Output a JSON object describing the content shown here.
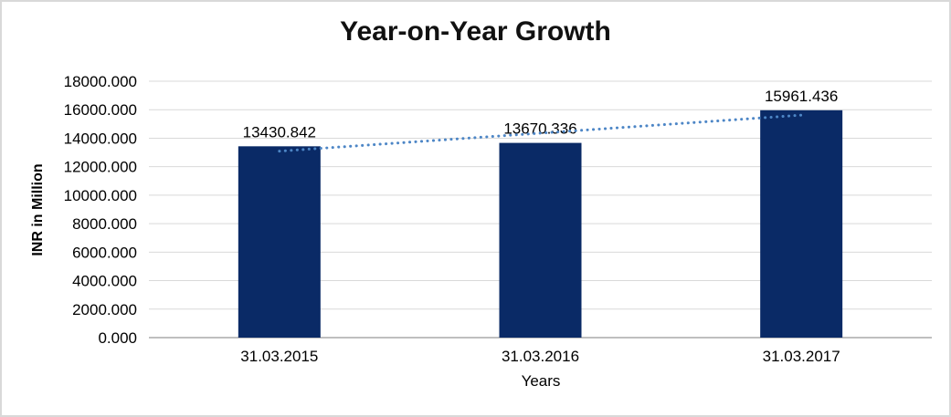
{
  "window": {
    "background": "#ffffff",
    "border_color": "#d9d9d9"
  },
  "chart_data": {
    "type": "bar",
    "title": "Year-on-Year Growth",
    "xlabel": "Years",
    "ylabel": "INR in Million",
    "categories": [
      "31.03.2015",
      "31.03.2016",
      "31.03.2017"
    ],
    "values": [
      13430.842,
      13670.336,
      15961.436
    ],
    "data_labels": [
      "13430.842",
      "13670.336",
      "15961.436"
    ],
    "ylim": [
      0,
      18000
    ],
    "y_tick_step": 2000,
    "y_tick_labels": [
      "0.000",
      "2000.000",
      "4000.000",
      "6000.000",
      "8000.000",
      "10000.000",
      "12000.000",
      "14000.000",
      "16000.000",
      "18000.000"
    ],
    "grid": true,
    "legend": false,
    "trendline": {
      "type": "linear",
      "style": "dotted"
    },
    "colors": {
      "bar": "#0a2a66",
      "trendline": "#4d86c6",
      "gridline": "#d9d9d9",
      "axis_line": "#bfbfbf",
      "label_text": "#000000",
      "title_text": "#111111"
    }
  }
}
